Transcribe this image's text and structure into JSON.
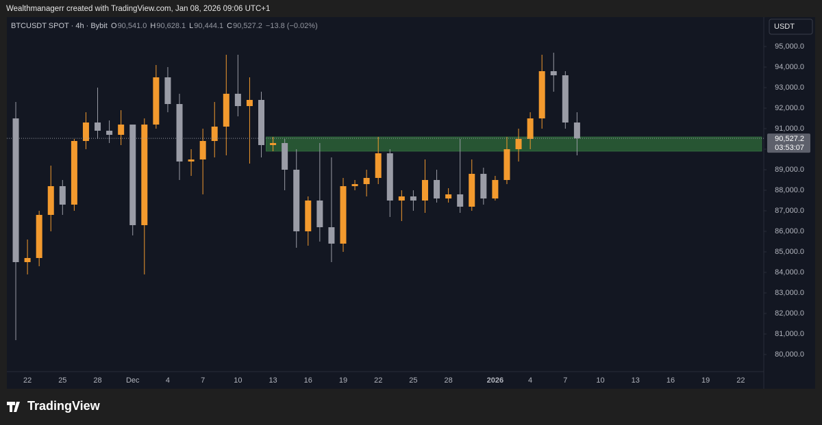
{
  "header": {
    "caption": "Wealthmanagerr created with TradingView.com, Jan 08, 2026 09:06 UTC+1"
  },
  "footer": {
    "brand": "TradingView"
  },
  "chart_data": {
    "type": "candlestick",
    "symbol": "BTCUSDT SPOT · 4h · Bybit",
    "ohlc": [
      {
        "key": "O",
        "value": "90,541.0"
      },
      {
        "key": "H",
        "value": "90,628.1"
      },
      {
        "key": "L",
        "value": "90,444.1"
      },
      {
        "key": "C",
        "value": "90,527.2"
      }
    ],
    "change": "−13.8 (−0.02%)",
    "currency": "USDT",
    "categories": [
      null,
      "22",
      null,
      null,
      "25",
      null,
      null,
      "28",
      null,
      null,
      "Dec",
      null,
      null,
      "4",
      null,
      null,
      "7",
      null,
      null,
      "10",
      null,
      null,
      "13",
      null,
      null,
      "16",
      null,
      null,
      "19",
      null,
      null,
      "22",
      null,
      null,
      "25",
      null,
      null,
      "28",
      null,
      null,
      null,
      "2026",
      null,
      null,
      "4",
      null,
      null,
      "7",
      null,
      null,
      "10",
      null,
      null,
      "13",
      null,
      null,
      "16",
      null,
      null,
      "19",
      null,
      null,
      "22",
      null
    ],
    "open": [
      91500,
      84500,
      84700,
      86800,
      88200,
      87300,
      90400,
      91300,
      90900,
      90700,
      91200,
      86300,
      91200,
      93500,
      92200,
      89400,
      89500,
      90400,
      91100,
      92700,
      92100,
      92400,
      90200,
      90300,
      89000,
      86000,
      87500,
      86200,
      85400,
      88200,
      88300,
      88600,
      89800,
      87500,
      87700,
      87500,
      88500,
      87600,
      87800,
      87200,
      88800,
      87600,
      88500,
      90000,
      90500,
      91500,
      93800,
      93600,
      91300,
      null,
      null,
      null,
      null,
      null,
      null,
      null,
      null,
      null,
      null,
      null,
      null,
      null,
      null,
      null
    ],
    "high": [
      92300,
      85600,
      87000,
      89200,
      88500,
      90500,
      91800,
      93000,
      91400,
      91900,
      91200,
      91500,
      94100,
      94000,
      92700,
      90000,
      91000,
      92300,
      94600,
      94600,
      93500,
      92800,
      90600,
      90500,
      90000,
      87700,
      90300,
      89600,
      88600,
      88500,
      89000,
      90600,
      90000,
      88000,
      88000,
      89500,
      89000,
      88100,
      90500,
      89500,
      89100,
      88700,
      90600,
      91000,
      91800,
      94600,
      94700,
      93800,
      91800,
      null,
      null,
      null,
      null,
      null,
      null,
      null,
      null,
      null,
      null,
      null,
      null,
      null,
      null,
      null
    ],
    "low": [
      80700,
      83900,
      84300,
      86000,
      86800,
      87000,
      90000,
      90500,
      90300,
      90200,
      85800,
      83900,
      91000,
      91800,
      88500,
      88700,
      87800,
      89600,
      89700,
      91600,
      89300,
      89600,
      89900,
      88000,
      85200,
      85300,
      85500,
      84500,
      85000,
      88000,
      87700,
      88300,
      86700,
      86500,
      87000,
      86900,
      87400,
      87400,
      86900,
      87000,
      87300,
      87500,
      88300,
      89400,
      90000,
      91000,
      92800,
      91000,
      89700,
      null,
      null,
      null,
      null,
      null,
      null,
      null,
      null,
      null,
      null,
      null,
      null,
      null,
      null,
      null
    ],
    "close": [
      84500,
      84700,
      86800,
      88200,
      87300,
      90400,
      91300,
      90900,
      90700,
      91200,
      86300,
      91200,
      93500,
      92200,
      89400,
      89500,
      90400,
      91100,
      92700,
      92100,
      92400,
      90200,
      90300,
      89000,
      86000,
      87500,
      86200,
      85400,
      88200,
      88300,
      88600,
      89800,
      87500,
      87700,
      87500,
      88500,
      87600,
      87800,
      87200,
      88800,
      87600,
      88500,
      90000,
      90500,
      91500,
      93800,
      93600,
      91300,
      90527.2,
      null,
      null,
      null,
      null,
      null,
      null,
      null,
      null,
      null,
      null,
      null,
      null,
      null,
      null,
      null
    ],
    "up_color": "#f39a2e",
    "down_color": "#9a9ca6",
    "zone": {
      "low": 89900,
      "high": 90600,
      "color": "#2f6b3a"
    },
    "last_price": {
      "value": 90527.2,
      "label": "90,527.2"
    },
    "countdown": "03:53:07",
    "ylim": [
      79200,
      96400
    ],
    "yticks": [
      {
        "value": 80000,
        "label": "80,000.0"
      },
      {
        "value": 81000,
        "label": "81,000.0"
      },
      {
        "value": 82000,
        "label": "82,000.0"
      },
      {
        "value": 83000,
        "label": "83,000.0"
      },
      {
        "value": 84000,
        "label": "84,000.0"
      },
      {
        "value": 85000,
        "label": "85,000.0"
      },
      {
        "value": 86000,
        "label": "86,000.0"
      },
      {
        "value": 87000,
        "label": "87,000.0"
      },
      {
        "value": 88000,
        "label": "88,000.0"
      },
      {
        "value": 89000,
        "label": "89,000.0"
      },
      {
        "value": 90000,
        "label": "90,000.0"
      },
      {
        "value": 91000,
        "label": "91,000.0"
      },
      {
        "value": 92000,
        "label": "92,000.0"
      },
      {
        "value": 93000,
        "label": "93,000.0"
      },
      {
        "value": 94000,
        "label": "94,000.0"
      },
      {
        "value": 95000,
        "label": "95,000.0"
      }
    ],
    "grid": false
  }
}
